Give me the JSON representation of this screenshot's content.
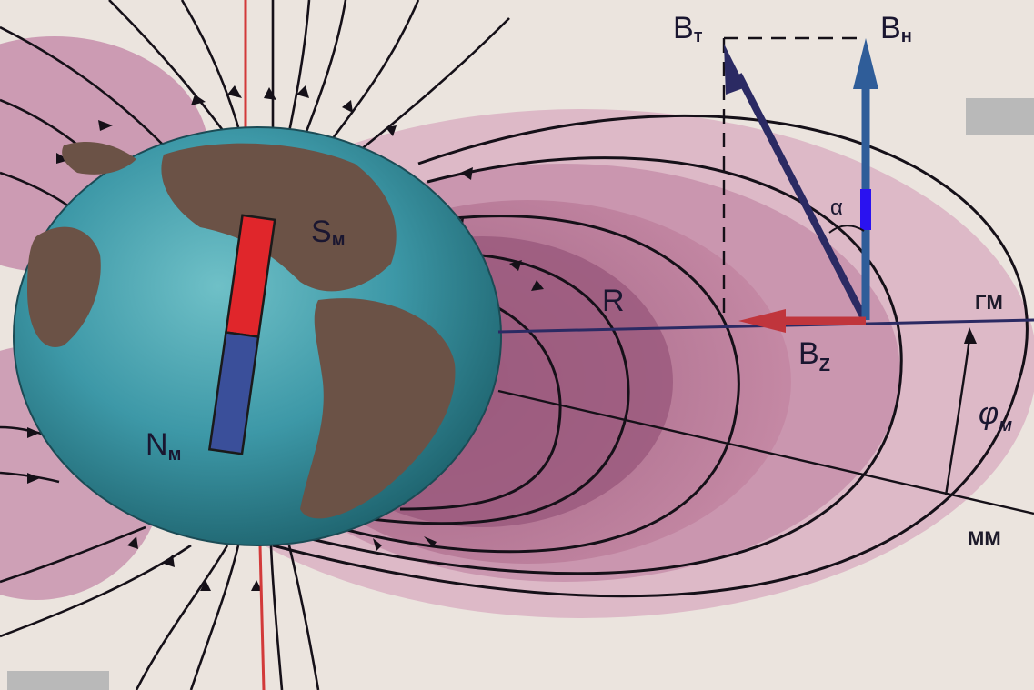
{
  "labels": {
    "b_t": "B",
    "b_t_sub": "т",
    "b_h": "B",
    "b_h_sub": "н",
    "b_z": "B",
    "b_z_sub": "Z",
    "alpha": "α",
    "r": "R",
    "gm": "ГМ",
    "mm": "ММ",
    "phi": "φ",
    "phi_sub": "м",
    "s": "S",
    "s_sub": "м",
    "n": "N",
    "n_sub": "м"
  },
  "colors": {
    "background": "#ebe4de",
    "field_zone": "#b76f92",
    "field_zone_inner": "#8c4f72",
    "field_lines": "#151018",
    "axis_red": "#d23a3a",
    "vector_dark": "#2b2a63",
    "vector_blue": "#2f5d99",
    "vector_red": "#c0353c",
    "globe_ocean": "#3a93a3",
    "globe_land": "#6b5246",
    "magnet_south": "#e0262b",
    "magnet_north": "#3a4f9a"
  }
}
